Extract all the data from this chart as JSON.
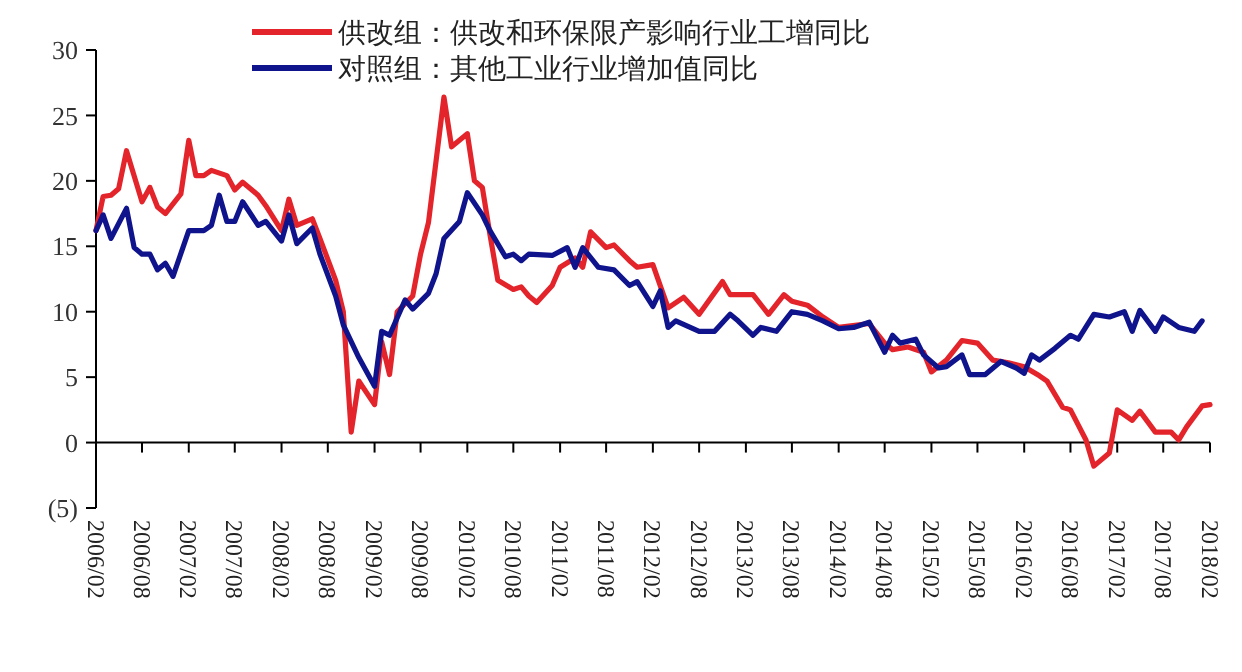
{
  "chart_data": {
    "type": "line",
    "legend": "top",
    "ylim": [
      -5,
      30
    ],
    "yticks": [
      {
        "value": -5,
        "label": "(5)"
      },
      0,
      5,
      10,
      15,
      20,
      25,
      30
    ],
    "xlim": [
      "2006-02",
      "2018-02"
    ],
    "xticks": [
      {
        "value": "2006-02",
        "label": "2006/02"
      },
      {
        "value": "2006-08",
        "label": "2006/08"
      },
      {
        "value": "2007-02",
        "label": "2007/02"
      },
      {
        "value": "2007-08",
        "label": "2007/08"
      },
      {
        "value": "2008-02",
        "label": "2008/02"
      },
      {
        "value": "2008-08",
        "label": "2008/08"
      },
      {
        "value": "2009-02",
        "label": "2009/02"
      },
      {
        "value": "2009-08",
        "label": "2009/08"
      },
      {
        "value": "2010-02",
        "label": "2010/02"
      },
      {
        "value": "2010-08",
        "label": "2010/08"
      },
      {
        "value": "2011-02",
        "label": "2011/02"
      },
      {
        "value": "2011-08",
        "label": "2011/08"
      },
      {
        "value": "2012-02",
        "label": "2012/02"
      },
      {
        "value": "2012-08",
        "label": "2012/08"
      },
      {
        "value": "2013-02",
        "label": "2013/02"
      },
      {
        "value": "2013-08",
        "label": "2013/08"
      },
      {
        "value": "2014-02",
        "label": "2014/02"
      },
      {
        "value": "2014-08",
        "label": "2014/08"
      },
      {
        "value": "2015-02",
        "label": "2015/02"
      },
      {
        "value": "2015-08",
        "label": "2015/08"
      },
      {
        "value": "2016-02",
        "label": "2016/02"
      },
      {
        "value": "2016-08",
        "label": "2016/08"
      },
      {
        "value": "2017-02",
        "label": "2017/02"
      },
      {
        "value": "2017-08",
        "label": "2017/08"
      },
      {
        "value": "2018-02",
        "label": "2018/02"
      }
    ],
    "series": [
      {
        "name": "供改组：供改和环保限产影响行业工增同比",
        "color": "#e3242b",
        "x": [
          "2006-02",
          "2006-03",
          "2006-04",
          "2006-05",
          "2006-06",
          "2006-08",
          "2006-09",
          "2006-10",
          "2006-11",
          "2007-01",
          "2007-02",
          "2007-03",
          "2007-04",
          "2007-05",
          "2007-07",
          "2007-08",
          "2007-09",
          "2007-11",
          "2007-12",
          "2008-02",
          "2008-03",
          "2008-04",
          "2008-06",
          "2008-07",
          "2008-09",
          "2008-10",
          "2008-11",
          "2008-12",
          "2009-02",
          "2009-03",
          "2009-04",
          "2009-05",
          "2009-07",
          "2009-08",
          "2009-09",
          "2009-11",
          "2009-12",
          "2010-01",
          "2010-02",
          "2010-03",
          "2010-04",
          "2010-05",
          "2010-06",
          "2010-08",
          "2010-09",
          "2010-10",
          "2010-11",
          "2011-01",
          "2011-02",
          "2011-04",
          "2011-05",
          "2011-06",
          "2011-08",
          "2011-09",
          "2011-11",
          "2011-12",
          "2012-02",
          "2012-03",
          "2012-04",
          "2012-06",
          "2012-08",
          "2012-11",
          "2012-12",
          "2013-03",
          "2013-05",
          "2013-07",
          "2013-08",
          "2013-10",
          "2013-12",
          "2014-02",
          "2014-06",
          "2014-08",
          "2014-09",
          "2014-11",
          "2015-01",
          "2015-02",
          "2015-04",
          "2015-06",
          "2015-08",
          "2015-10",
          "2015-12",
          "2016-02",
          "2016-04",
          "2016-05",
          "2016-07",
          "2016-08",
          "2016-10",
          "2016-11",
          "2017-01",
          "2017-02",
          "2017-04",
          "2017-05",
          "2017-07",
          "2017-09",
          "2017-10",
          "2017-11",
          "2018-01",
          "2018-02"
        ],
        "values": [
          16.2,
          18.8,
          18.9,
          19.4,
          22.3,
          18.4,
          19.5,
          18,
          17.5,
          19,
          23.1,
          20.4,
          20.4,
          20.8,
          20.4,
          19.3,
          19.9,
          18.9,
          18.1,
          16.2,
          18.6,
          16.6,
          17.1,
          15.6,
          12.4,
          10,
          0.8,
          4.7,
          2.9,
          7.7,
          5.2,
          10,
          11.2,
          14.4,
          16.8,
          26.4,
          22.6,
          23.1,
          23.6,
          20,
          19.5,
          15.9,
          12.4,
          11.7,
          11.9,
          11.2,
          10.7,
          12,
          13.4,
          14.1,
          13.4,
          16.1,
          14.9,
          15.1,
          13.9,
          13.4,
          13.6,
          12,
          10.3,
          11.1,
          9.8,
          12.3,
          11.3,
          11.3,
          9.8,
          11.3,
          10.8,
          10.5,
          9.6,
          8.8,
          9.1,
          7.6,
          7.1,
          7.3,
          6.9,
          5.4,
          6.3,
          7.8,
          7.6,
          6.3,
          6.1,
          5.8,
          5.1,
          4.7,
          2.7,
          2.5,
          0.2,
          -1.8,
          -0.8,
          2.5,
          1.7,
          2.4,
          0.8,
          0.8,
          0.2,
          1.2,
          2.8,
          2.9
        ]
      },
      {
        "name": "对照组：其他工业行业增加值同比",
        "color": "#10148c",
        "x": [
          "2006-02",
          "2006-03",
          "2006-04",
          "2006-06",
          "2006-07",
          "2006-08",
          "2006-09",
          "2006-10",
          "2006-11",
          "2006-12",
          "2007-02",
          "2007-04",
          "2007-05",
          "2007-06",
          "2007-07",
          "2007-08",
          "2007-09",
          "2007-11",
          "2007-12",
          "2008-02",
          "2008-03",
          "2008-04",
          "2008-06",
          "2008-07",
          "2008-09",
          "2008-10",
          "2008-12",
          "2009-02",
          "2009-03",
          "2009-04",
          "2009-06",
          "2009-07",
          "2009-09",
          "2009-10",
          "2009-11",
          "2010-01",
          "2010-02",
          "2010-04",
          "2010-05",
          "2010-07",
          "2010-08",
          "2010-09",
          "2010-10",
          "2011-01",
          "2011-03",
          "2011-04",
          "2011-05",
          "2011-07",
          "2011-09",
          "2011-11",
          "2011-12",
          "2012-02",
          "2012-03",
          "2012-04",
          "2012-05",
          "2012-08",
          "2012-10",
          "2012-12",
          "2013-01",
          "2013-03",
          "2013-04",
          "2013-06",
          "2013-08",
          "2013-10",
          "2013-12",
          "2014-02",
          "2014-04",
          "2014-06",
          "2014-08",
          "2014-09",
          "2014-10",
          "2014-12",
          "2015-01",
          "2015-03",
          "2015-04",
          "2015-06",
          "2015-07",
          "2015-09",
          "2015-11",
          "2016-01",
          "2016-02",
          "2016-03",
          "2016-04",
          "2016-06",
          "2016-08",
          "2016-09",
          "2016-11",
          "2017-01",
          "2017-03",
          "2017-04",
          "2017-05",
          "2017-07",
          "2017-08",
          "2017-10",
          "2017-12",
          "2018-01"
        ],
        "values": [
          16.2,
          17.4,
          15.6,
          17.9,
          14.9,
          14.4,
          14.4,
          13.2,
          13.7,
          12.7,
          16.2,
          16.2,
          16.6,
          18.9,
          16.9,
          16.9,
          18.4,
          16.6,
          16.9,
          15.4,
          17.4,
          15.2,
          16.4,
          14.4,
          11.2,
          9,
          6.5,
          4.3,
          8.5,
          8.2,
          10.9,
          10.2,
          11.4,
          12.9,
          15.6,
          16.9,
          19.1,
          17.4,
          16.2,
          14.2,
          14.4,
          13.9,
          14.4,
          14.3,
          14.9,
          13.4,
          14.9,
          13.4,
          13.2,
          12,
          12.3,
          10.4,
          11.6,
          8.8,
          9.3,
          8.5,
          8.5,
          9.8,
          9.3,
          8.2,
          8.8,
          8.5,
          10,
          9.8,
          9.3,
          8.7,
          8.8,
          9.2,
          6.9,
          8.2,
          7.6,
          7.9,
          6.7,
          5.7,
          5.8,
          6.7,
          5.2,
          5.2,
          6.2,
          5.7,
          5.3,
          6.7,
          6.3,
          7.2,
          8.2,
          7.9,
          9.8,
          9.6,
          10,
          8.5,
          10.1,
          8.5,
          9.6,
          8.8,
          8.5,
          9.3
        ]
      }
    ]
  }
}
